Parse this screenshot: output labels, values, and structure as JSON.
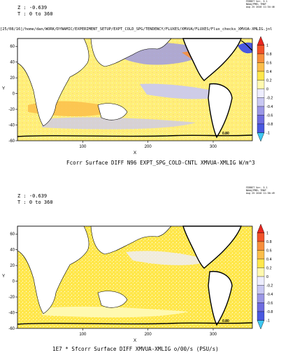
{
  "chart_data": [
    {
      "type": "heatmap",
      "header": {
        "z_line": "Z : -0.639",
        "t_line": "T : 0 to 360"
      },
      "stamp": [
        "FERRET Ver. 5.1",
        "NOAA/PMEL TMAP",
        "Aug 25 2016 11:34:46"
      ],
      "path_label": "[25/08/16]/home/dan/WORK/DYNAMIC/EXPERIMENT_SETUP/EXPT_COLD_SPG/TENDENCY/FLUXES/XMVUA/FLUXES/Flux_checks_XMVUA-XMLIG.jnl",
      "title": "Fcorr Surface DIFF N96 EXPT_SPG_COLD-CNTL XMVUA-XMLIG W/m^3",
      "xlabel": "X",
      "ylabel": "Y",
      "xlim": [
        0,
        360
      ],
      "ylim": [
        -60,
        70
      ],
      "x_ticks": [
        100,
        200,
        300
      ],
      "y_ticks": [
        -60,
        -40,
        -20,
        0,
        20,
        40,
        60
      ],
      "contour_label": "0.80",
      "colorbar": {
        "levels": [
          1,
          0.8,
          0.6,
          0.4,
          0.2,
          0,
          -0.2,
          -0.4,
          -0.6,
          -0.8,
          -1
        ],
        "colors": [
          "#e8261f",
          "#f1532a",
          "#f78f3c",
          "#fbbe4a",
          "#ffe74c",
          "#fff9b0",
          "#eeeeff",
          "#c9c8f3",
          "#9b97e6",
          "#6f6ce0",
          "#4a58e0",
          "#3ec8f2"
        ]
      }
    },
    {
      "type": "heatmap",
      "header": {
        "z_line": "Z : -0.639",
        "t_line": "T : 0 to 360"
      },
      "stamp": [
        "FERRET Ver. 5.1",
        "NOAA/PMEL TMAP",
        "Aug 25 2016 11:36:49"
      ],
      "title": "1E7 * Sfcorr Surface DIFF XMVUA-XMLIG o/00/s (PSU/s)",
      "xlabel": "X",
      "ylabel": "Y",
      "xlim": [
        0,
        360
      ],
      "ylim": [
        -60,
        70
      ],
      "x_ticks": [
        100,
        200,
        300
      ],
      "y_ticks": [
        -60,
        -40,
        -20,
        0,
        20,
        40,
        60
      ],
      "contour_label": "0.80",
      "colorbar": {
        "levels": [
          1,
          0.8,
          0.6,
          0.4,
          0.2,
          0,
          -0.2,
          -0.4,
          -0.6,
          -0.8,
          -1
        ],
        "colors": [
          "#e8261f",
          "#f1532a",
          "#f78f3c",
          "#fbbe4a",
          "#ffe74c",
          "#fff9b0",
          "#eeeeff",
          "#c9c8f3",
          "#9b97e6",
          "#6f6ce0",
          "#4a58e0",
          "#3ec8f2"
        ]
      }
    }
  ]
}
